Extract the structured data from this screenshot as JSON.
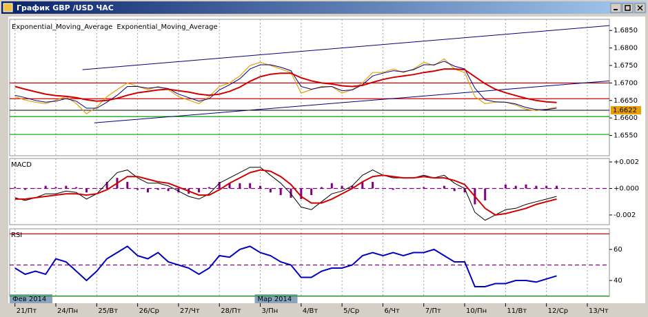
{
  "window": {
    "title": "График GBP /USD ЧАС"
  },
  "time_axis": {
    "x": [
      0,
      0.25,
      0.5,
      0.75,
      1,
      1.25,
      1.5,
      1.75,
      2,
      2.25,
      2.5,
      2.75,
      3,
      3.25,
      3.5,
      3.75,
      4,
      4.25,
      4.5,
      4.75,
      5,
      5.25,
      5.5,
      5.75,
      6,
      6.25,
      6.5,
      6.75,
      7,
      7.25,
      7.5,
      7.75,
      8,
      8.25,
      8.5,
      8.75,
      9,
      9.25,
      9.5,
      9.75,
      10,
      10.25,
      10.5,
      10.75,
      11,
      11.25,
      11.5,
      11.75,
      12,
      12.25,
      12.5,
      12.75,
      13,
      13.25
    ],
    "xlim": [
      -0.13,
      14.54
    ],
    "xticks": [
      {
        "value": 0,
        "label": "21/Пт"
      },
      {
        "value": 1,
        "label": "24/Пн"
      },
      {
        "value": 2,
        "label": "25/Вт"
      },
      {
        "value": 3,
        "label": "26/Ср"
      },
      {
        "value": 4,
        "label": "27/Чт"
      },
      {
        "value": 5,
        "label": "28/Пт"
      },
      {
        "value": 6,
        "label": "3/Пн"
      },
      {
        "value": 7,
        "label": "4/Вт"
      },
      {
        "value": 8,
        "label": "5/Ср"
      },
      {
        "value": 9,
        "label": "6/Чт"
      },
      {
        "value": 10,
        "label": "7/Пт"
      },
      {
        "value": 11,
        "label": "10/Пн"
      },
      {
        "value": 12,
        "label": "11/Вт"
      },
      {
        "value": 13,
        "label": "12/Ср"
      },
      {
        "value": 14,
        "label": "13/Чт"
      }
    ],
    "period_labels": [
      {
        "value": 0,
        "label": "Фев 2014"
      },
      {
        "value": 6,
        "label": "Мар 2014"
      }
    ]
  },
  "chart_data": [
    {
      "type": "line",
      "ylim": [
        1.6494,
        1.6878
      ],
      "yticks": [
        {
          "value": 1.685,
          "label": "1.6850"
        },
        {
          "value": 1.68,
          "label": "1.6800"
        },
        {
          "value": 1.675,
          "label": "1.6750"
        },
        {
          "value": 1.67,
          "label": "1.6700"
        },
        {
          "value": 1.665,
          "label": "1.6650"
        },
        {
          "value": 1.66,
          "label": "1.6600"
        },
        {
          "value": 1.655,
          "label": "1.6550"
        }
      ],
      "series": [
        {
          "color": "#e8a000",
          "values": [
            1.6661,
            1.6651,
            1.6645,
            1.6641,
            1.6651,
            1.6661,
            1.6641,
            1.6612,
            1.6631,
            1.6661,
            1.6681,
            1.67,
            1.669,
            1.6681,
            1.669,
            1.6681,
            1.6661,
            1.6651,
            1.6641,
            1.6661,
            1.669,
            1.67,
            1.672,
            1.675,
            1.6759,
            1.675,
            1.674,
            1.673,
            1.6671,
            1.6681,
            1.669,
            1.669,
            1.6671,
            1.6681,
            1.67,
            1.673,
            1.673,
            1.674,
            1.673,
            1.674,
            1.6759,
            1.675,
            1.6769,
            1.674,
            1.673,
            1.6661,
            1.6641,
            1.6645,
            1.6645,
            1.6637,
            1.6625,
            1.6621,
            1.6625,
            1.6631
          ]
        },
        {
          "name": "Exponential_Moving_Average",
          "color": "#000080",
          "values": [
            1.6665,
            1.6658,
            1.665,
            1.6645,
            1.6648,
            1.6655,
            1.6648,
            1.6628,
            1.6628,
            1.6645,
            1.6665,
            1.669,
            1.669,
            1.6685,
            1.6688,
            1.6684,
            1.6668,
            1.6658,
            1.6648,
            1.6655,
            1.668,
            1.6695,
            1.6712,
            1.674,
            1.6752,
            1.6752,
            1.6745,
            1.6735,
            1.669,
            1.6682,
            1.6688,
            1.669,
            1.6678,
            1.668,
            1.6695,
            1.672,
            1.6728,
            1.6735,
            1.6732,
            1.6738,
            1.6752,
            1.6752,
            1.6762,
            1.6748,
            1.674,
            1.6685,
            1.6652,
            1.6646,
            1.6645,
            1.664,
            1.663,
            1.6624,
            1.6624,
            1.6628
          ]
        },
        {
          "name": "Exponential_Moving_Average",
          "color": "#d00000",
          "values": [
            1.669,
            1.6682,
            1.6675,
            1.6668,
            1.6664,
            1.6662,
            1.6658,
            1.6652,
            1.6648,
            1.665,
            1.6656,
            1.6665,
            1.6672,
            1.6676,
            1.668,
            1.6682,
            1.6678,
            1.6674,
            1.6668,
            1.6665,
            1.6668,
            1.6676,
            1.6688,
            1.6705,
            1.6718,
            1.6725,
            1.6728,
            1.6728,
            1.6715,
            1.6706,
            1.67,
            1.6697,
            1.6692,
            1.669,
            1.6693,
            1.6702,
            1.671,
            1.6716,
            1.672,
            1.6724,
            1.673,
            1.6734,
            1.674,
            1.674,
            1.6738,
            1.6718,
            1.6698,
            1.6682,
            1.6672,
            1.6664,
            1.6656,
            1.665,
            1.6646,
            1.6644
          ]
        }
      ],
      "hlines": [
        {
          "value": 1.67,
          "color": "#d00000"
        },
        {
          "value": 1.6655,
          "color": "#d00000"
        },
        {
          "value": 1.6604,
          "color": "#00a000"
        },
        {
          "value": 1.6553,
          "color": "#00a000"
        }
      ],
      "trendlines": [
        {
          "x": [
            1.65,
            14.54
          ],
          "values": [
            1.6738,
            1.6864
          ],
          "color": "#000080"
        },
        {
          "x": [
            1.94,
            14.54
          ],
          "values": [
            1.6586,
            1.6706
          ],
          "color": "#000080"
        }
      ],
      "price_label": {
        "value": 1.6622,
        "label": "1.6622",
        "color": "#e8a000"
      }
    },
    {
      "type": "line",
      "title": "MACD",
      "ylim": [
        -0.00268,
        0.00221
      ],
      "yticks": [
        {
          "value": 0.002,
          "label": "+0.002"
        },
        {
          "value": 0,
          "label": "+0.000"
        },
        {
          "value": -0.002,
          "label": "-0.002"
        }
      ],
      "series": [
        {
          "type": "bar",
          "color": "#800080",
          "values": [
            0.0001,
            -0.0001,
            0,
            0.0002,
            0.0001,
            0.0002,
            0.0001,
            -0.0003,
            0,
            0.0005,
            0.0008,
            0.0005,
            -0.0001,
            -0.0003,
            -0.0001,
            -0.0002,
            -0.0003,
            -0.0004,
            -0.0003,
            0.0001,
            0.0005,
            0.0004,
            0.0004,
            0.0004,
            0.0002,
            -0.0003,
            -0.0005,
            -0.0007,
            -0.0008,
            -0.0005,
            0.0001,
            0.0004,
            0.0002,
            0.0002,
            0.0005,
            0.0005,
            0,
            -0.0001,
            0,
            0,
            0.0001,
            0,
            0.0002,
            -0.0002,
            -0.0003,
            -0.0012,
            -0.0009,
            0,
            0.0003,
            0.0002,
            0.0003,
            0.0002,
            0.0002,
            0.0002
          ]
        },
        {
          "color": "#000000",
          "values": [
            -0.0007,
            -0.0009,
            -0.0007,
            -0.0004,
            -0.0004,
            -0.0002,
            -0.0003,
            -0.0008,
            -0.0004,
            0.0004,
            0.0012,
            0.0014,
            0.0008,
            0.0004,
            0.0004,
            0.0002,
            -0.0002,
            -0.0006,
            -0.0008,
            -0.0004,
            0.0004,
            0.0008,
            0.0012,
            0.0016,
            0.0016,
            0.001,
            0.0004,
            -0.0004,
            -0.0014,
            -0.0016,
            -0.001,
            -0.0004,
            -0.0002,
            0.0002,
            0.001,
            0.0014,
            0.001,
            0.0008,
            0.0008,
            0.0008,
            0.001,
            0.0008,
            0.001,
            0.0004,
            0,
            -0.0018,
            -0.0024,
            -0.002,
            -0.0016,
            -0.0015,
            -0.0012,
            -0.001,
            -0.0008,
            -0.0006
          ]
        },
        {
          "color": "#d00000",
          "values": [
            -0.0008,
            -0.0008,
            -0.0007,
            -0.0006,
            -0.0005,
            -0.0004,
            -0.0004,
            -0.0005,
            -0.0004,
            -0.0001,
            0.0004,
            0.0009,
            0.0009,
            0.0007,
            0.0005,
            0.0004,
            0.0001,
            -0.0002,
            -0.0005,
            -0.0005,
            -0.0001,
            0.0004,
            0.0008,
            0.0012,
            0.0014,
            0.0013,
            0.0009,
            0.0003,
            -0.0006,
            -0.0011,
            -0.0011,
            -0.0008,
            -0.0004,
            0,
            0.0005,
            0.0009,
            0.001,
            0.0009,
            0.0008,
            0.0008,
            0.0009,
            0.0008,
            0.0008,
            0.0006,
            0.0003,
            -0.0006,
            -0.0015,
            -0.002,
            -0.0019,
            -0.0017,
            -0.0015,
            -0.0012,
            -0.001,
            -0.0008
          ]
        }
      ],
      "hlines": [
        {
          "value": 0,
          "color": "#800080",
          "style": "dashed"
        }
      ]
    },
    {
      "type": "line",
      "title": "RSI",
      "ylim": [
        29.8,
        72.4
      ],
      "yticks": [
        60,
        40
      ],
      "series": [
        {
          "color": "#0000c0",
          "values": [
            48,
            44,
            46,
            44,
            54,
            52,
            46,
            40,
            46,
            54,
            58,
            62,
            56,
            54,
            58,
            52,
            50,
            48,
            44,
            48,
            56,
            55,
            60,
            62,
            58,
            56,
            52,
            50,
            42,
            42,
            46,
            48,
            48,
            50,
            56,
            58,
            56,
            58,
            56,
            58,
            58,
            60,
            56,
            52,
            52,
            36,
            36,
            38,
            38,
            40,
            40,
            39,
            41,
            43
          ]
        }
      ],
      "hlines": [
        {
          "value": 70,
          "color": "#d00000"
        },
        {
          "value": 50,
          "color": "#800080",
          "style": "dashed"
        },
        {
          "value": 30,
          "color": "#00a000"
        }
      ]
    }
  ]
}
